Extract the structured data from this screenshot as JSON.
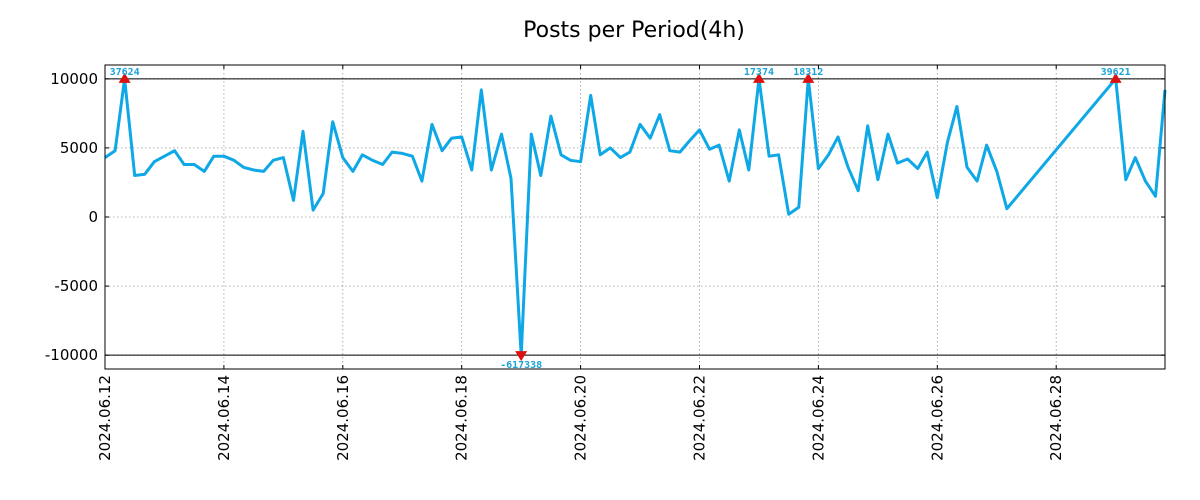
{
  "chart_data": {
    "type": "line",
    "title": "Posts per Period(4h)",
    "xlabel": "",
    "ylabel": "",
    "ylim": [
      -11000,
      11000
    ],
    "clip_range": [
      -10000,
      10000
    ],
    "yticks": [
      10000,
      5000,
      0,
      -5000,
      -10000
    ],
    "ytick_labels": [
      "10000",
      "5000",
      "0",
      "-5000",
      "-10000"
    ],
    "x_start_day": 12.0,
    "x_end_day": 29.83,
    "x_step_days": 0.1667,
    "xticks": [
      12.0,
      14.0,
      16.0,
      18.0,
      20.0,
      22.0,
      24.0,
      26.0,
      28.0
    ],
    "xtick_labels": [
      "2024.06.12",
      "2024.06.14",
      "2024.06.16",
      "2024.06.18",
      "2024.06.20",
      "2024.06.22",
      "2024.06.24",
      "2024.06.26",
      "2024.06.28"
    ],
    "grid": true,
    "colors": {
      "line": "#0ea8e6",
      "marker": "#dd1111",
      "label": "#1aa3d9"
    },
    "series": [
      {
        "name": "Posts",
        "points": [
          [
            12.0,
            4300
          ],
          [
            12.17,
            4800
          ],
          [
            12.33,
            10000
          ],
          [
            12.5,
            3000
          ],
          [
            12.67,
            3100
          ],
          [
            12.83,
            4000
          ],
          [
            13.0,
            4400
          ],
          [
            13.17,
            4800
          ],
          [
            13.33,
            3800
          ],
          [
            13.5,
            3800
          ],
          [
            13.67,
            3300
          ],
          [
            13.83,
            4400
          ],
          [
            14.0,
            4400
          ],
          [
            14.17,
            4100
          ],
          [
            14.33,
            3600
          ],
          [
            14.5,
            3400
          ],
          [
            14.67,
            3300
          ],
          [
            14.83,
            4100
          ],
          [
            15.0,
            4300
          ],
          [
            15.17,
            1200
          ],
          [
            15.33,
            6200
          ],
          [
            15.5,
            500
          ],
          [
            15.67,
            1700
          ],
          [
            15.83,
            6900
          ],
          [
            16.0,
            4300
          ],
          [
            16.17,
            3300
          ],
          [
            16.33,
            4500
          ],
          [
            16.5,
            4100
          ],
          [
            16.67,
            3800
          ],
          [
            16.83,
            4700
          ],
          [
            17.0,
            4600
          ],
          [
            17.17,
            4400
          ],
          [
            17.33,
            2600
          ],
          [
            17.5,
            6700
          ],
          [
            17.67,
            4800
          ],
          [
            17.83,
            5700
          ],
          [
            18.0,
            5800
          ],
          [
            18.17,
            3400
          ],
          [
            18.33,
            9200
          ],
          [
            18.5,
            3400
          ],
          [
            18.67,
            6000
          ],
          [
            18.83,
            2800
          ],
          [
            19.0,
            -10000
          ],
          [
            19.17,
            6000
          ],
          [
            19.33,
            3000
          ],
          [
            19.5,
            7300
          ],
          [
            19.67,
            4500
          ],
          [
            19.83,
            4100
          ],
          [
            20.0,
            4000
          ],
          [
            20.17,
            8800
          ],
          [
            20.33,
            4500
          ],
          [
            20.5,
            5000
          ],
          [
            20.67,
            4300
          ],
          [
            20.83,
            4700
          ],
          [
            21.0,
            6700
          ],
          [
            21.17,
            5700
          ],
          [
            21.33,
            7400
          ],
          [
            21.5,
            4800
          ],
          [
            21.67,
            4700
          ],
          [
            21.83,
            5500
          ],
          [
            22.0,
            6300
          ],
          [
            22.17,
            4900
          ],
          [
            22.33,
            5200
          ],
          [
            22.5,
            2600
          ],
          [
            22.67,
            6300
          ],
          [
            22.83,
            3400
          ],
          [
            23.0,
            10000
          ],
          [
            23.17,
            4400
          ],
          [
            23.33,
            4500
          ],
          [
            23.5,
            200
          ],
          [
            23.67,
            700
          ],
          [
            23.83,
            10000
          ],
          [
            24.0,
            3500
          ],
          [
            24.17,
            4500
          ],
          [
            24.33,
            5800
          ],
          [
            24.5,
            3600
          ],
          [
            24.67,
            1900
          ],
          [
            24.83,
            6600
          ],
          [
            25.0,
            2700
          ],
          [
            25.17,
            6000
          ],
          [
            25.33,
            3900
          ],
          [
            25.5,
            4200
          ],
          [
            25.67,
            3500
          ],
          [
            25.83,
            4700
          ],
          [
            26.0,
            1400
          ],
          [
            26.17,
            5400
          ],
          [
            26.33,
            8000
          ],
          [
            26.5,
            3600
          ],
          [
            26.67,
            2600
          ],
          [
            26.83,
            5200
          ],
          [
            27.0,
            3300
          ],
          [
            27.17,
            600
          ],
          [
            29.0,
            10000
          ],
          [
            29.17,
            2700
          ],
          [
            29.33,
            4300
          ],
          [
            29.5,
            2600
          ],
          [
            29.67,
            1500
          ],
          [
            29.83,
            9200
          ]
        ]
      }
    ],
    "peak_labels": [
      {
        "x": 12.33,
        "y": 10000,
        "direction": "up",
        "text": "37624"
      },
      {
        "x": 19.0,
        "y": -10000,
        "direction": "down",
        "text": "-617338"
      },
      {
        "x": 23.0,
        "y": 10000,
        "direction": "up",
        "text": "17374"
      },
      {
        "x": 23.83,
        "y": 10000,
        "direction": "up",
        "text": "18312"
      },
      {
        "x": 29.0,
        "y": 10000,
        "direction": "up",
        "text": "39621"
      }
    ]
  }
}
